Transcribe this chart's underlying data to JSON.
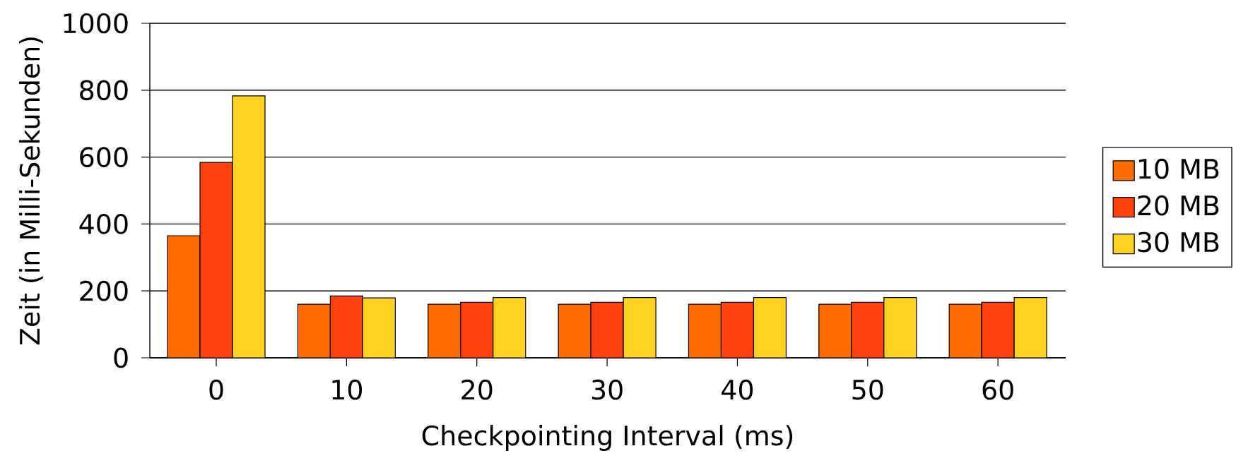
{
  "chart_data": {
    "type": "bar",
    "xlabel": "Checkpointing Interval (ms)",
    "ylabel": "Zeit (in Milli-Sekunden)",
    "categories": [
      "0",
      "10",
      "20",
      "30",
      "40",
      "50",
      "60"
    ],
    "series": [
      {
        "name": "10 MB",
        "color": "#ff6d00",
        "values": [
          365,
          160,
          160,
          160,
          160,
          160,
          160
        ]
      },
      {
        "name": "20 MB",
        "color": "#ff420e",
        "values": [
          584,
          185,
          166,
          166,
          166,
          166,
          166
        ]
      },
      {
        "name": "30 MB",
        "color": "#ffd320",
        "values": [
          783,
          179,
          180,
          180,
          180,
          180,
          180
        ]
      }
    ],
    "ylim": [
      0,
      1000
    ],
    "yticks": [
      0,
      200,
      400,
      600,
      800,
      1000
    ],
    "grid": "y",
    "legend": "right"
  }
}
